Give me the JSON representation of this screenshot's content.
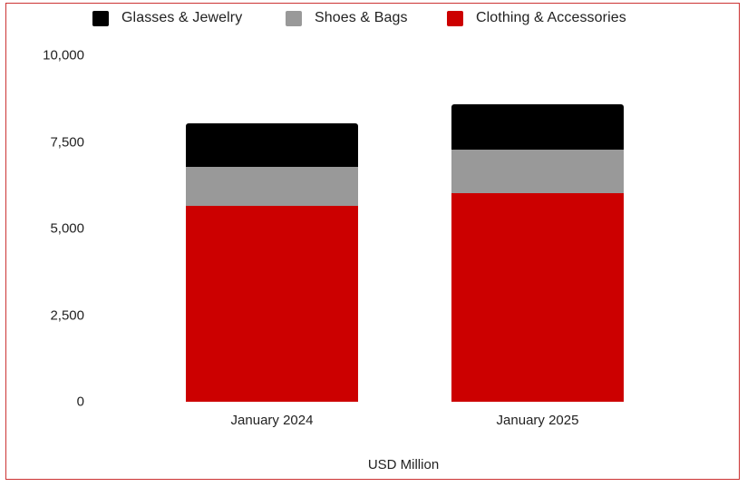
{
  "chart_data": {
    "type": "bar",
    "stacked": true,
    "title": "",
    "xlabel": "USD Million",
    "ylabel": "",
    "ylim": [
      0,
      10000
    ],
    "yticks": [
      "0",
      "2,500",
      "5,000",
      "7,500",
      "10,000"
    ],
    "categories": [
      "January 2024",
      "January 2025"
    ],
    "series": [
      {
        "name": "Clothing & Accessories",
        "color": "#cc0000",
        "values": [
          5650,
          6010
        ]
      },
      {
        "name": "Shoes & Bags",
        "color": "#999999",
        "values": [
          1120,
          1260
        ]
      },
      {
        "name": "Glasses & Jewelry",
        "color": "#000000",
        "values": [
          1260,
          1310
        ]
      }
    ],
    "legend_position": "top",
    "grid": false
  },
  "legend": [
    {
      "label": "Glasses & Jewelry",
      "color": "#000000"
    },
    {
      "label": "Shoes & Bags",
      "color": "#999999"
    },
    {
      "label": "Clothing & Accessories",
      "color": "#cc0000"
    }
  ],
  "frame_color": "#cc3333"
}
